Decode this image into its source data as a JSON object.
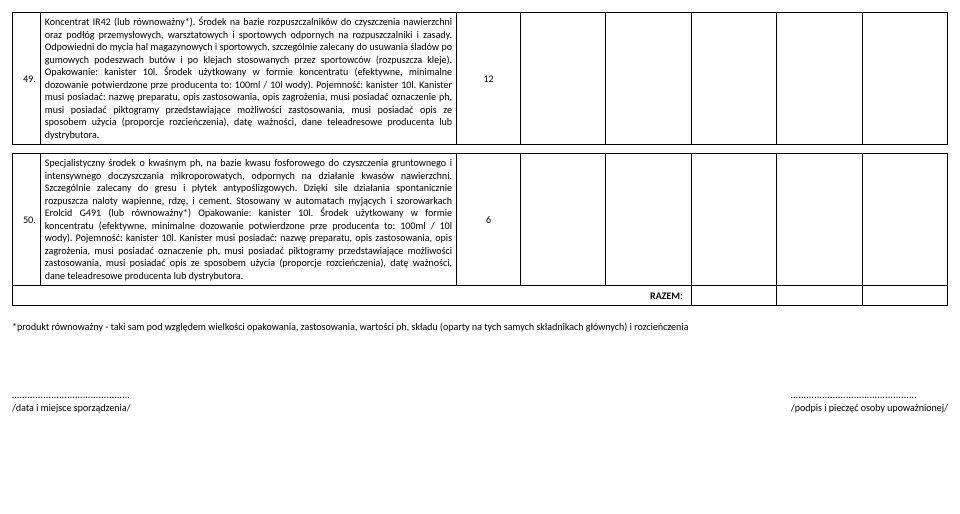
{
  "rows": [
    {
      "num": "49.",
      "desc": "Koncentrat IR42 (lub równoważny*). Środek na bazie rozpuszczalników do czyszczenia nawierzchni oraz podłóg przemysłowych, warsztatowych i sportowych odpornych na rozpuszczalniki i zasady. Odpowiedni do mycia hal magazynowych i sportowych, szczególnie zalecany do usuwania śladów po gumowych podeszwach butów i po klejach stosowanych przez sportowców (rozpuszcza kleje). Opakowanie: kanister 10l. Środek użytkowany w formie koncentratu (efektywne, minimalne dozowanie potwierdzone prze producenta to: 100ml / 10l wody). Pojemność: kanister 10l. Kanister musi posiadać: nazwę preparatu, opis zastosowania, opis zagrożenia, musi posiadać oznaczenie ph, musi posiadać piktogramy przedstawiające możliwości zastosowania, musi posiadać opis ze sposobem użycia (proporcje rozcieńczenia), datę ważności, dane teleadresowe producenta lub dystrybutora.",
      "qty": "12"
    },
    {
      "num": "50.",
      "desc": "Specjalistyczny środek o kwaśnym ph, na bazie kwasu fosforowego do czyszczenia gruntownego i intensywnego doczyszczania mikroporowatych, odpornych na działanie kwasów nawierzchni. Szczególnie zalecany do gresu i płytek antypoślizgowych. Dzięki sile działania spontanicznie rozpuszcza naloty wapienne, rdzę, i cement. Stosowany w automatach myjących i szorowarkach Erolcid G491 (lub równoważny*) Opakowanie: kanister 10l. Środek użytkowany w formie koncentratu (efektywne, minimalne dozowanie potwierdzone prze producenta to: 100ml / 10l wody). Pojemność: kanister 10l. Kanister musi posiadać: nazwę preparatu, opis zastosowania, opis zagrożenia, musi posiadać oznaczenie ph, musi posiadać piktogramy przedstawiające możliwości zastosowania, musi posiadać opis ze sposobem użycia (proporcje rozcieńczenia), datę ważności, dane teleadresowe producenta lub dystrybutora.",
      "qty": "6"
    }
  ],
  "razem_label": "RAZEM:",
  "footnote": "*produkt równoważny - taki sam pod względem wielkości opakowania, zastosowania, wartości ph, składu (oparty na tych samych składnikach głównych) i rozcieńczenia",
  "sig_left_dots": "………………………………………",
  "sig_left_label": "/data i miejsce sporządzenia/",
  "sig_right_dots": "…………………………………………",
  "sig_right_label": "/podpis i pieczęć osoby upoważnionej/"
}
